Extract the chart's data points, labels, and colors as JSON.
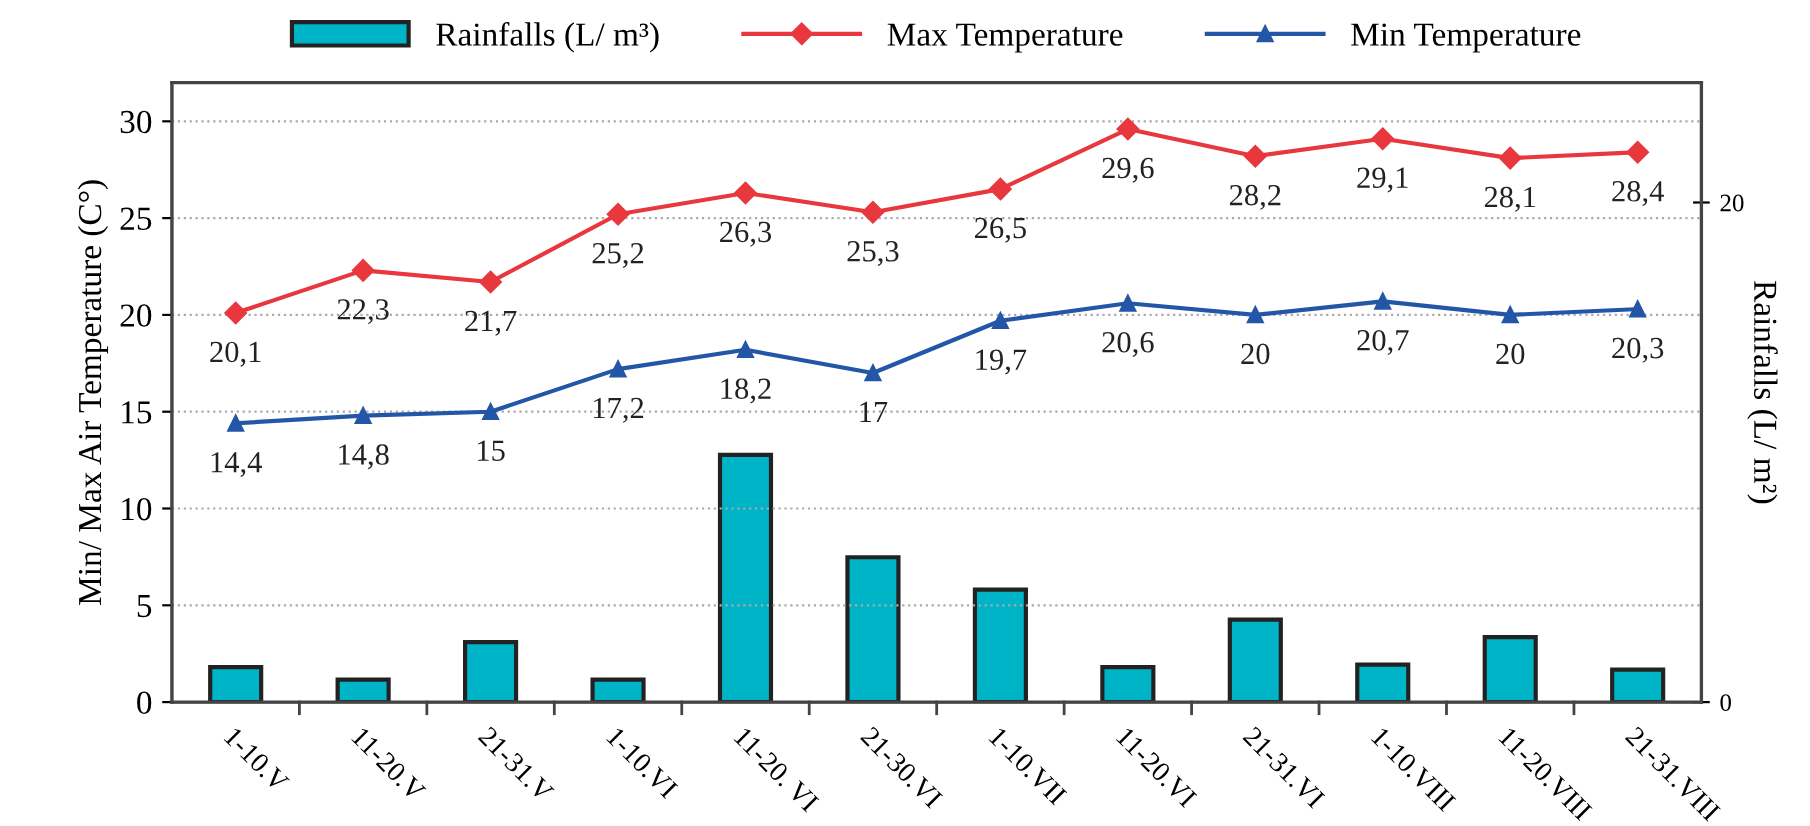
{
  "chart_data": {
    "type": "bar",
    "ylabel": "Min/ Max Air Temperature (C°)",
    "y2label": "Rainfalls (L/ m²)",
    "categories": [
      "1-10.V",
      "11-20.V",
      "21-31.V",
      "1-10.VI",
      "11-20. VI",
      "21-30.VI",
      "1-10.VII",
      "11-20.VI",
      "21-31.VI",
      "1-10.VIII",
      "11-20.VIII",
      "21-31.VIII"
    ],
    "series": [
      {
        "name": "Rainfalls (L/ m³)",
        "axis": "y2",
        "color": "#00b4c8",
        "values": [
          1.4,
          0.9,
          2.4,
          0.9,
          9.9,
          5.8,
          4.5,
          1.4,
          3.3,
          1.5,
          2.6,
          1.3
        ]
      },
      {
        "name": "Max Temperature",
        "type": "line",
        "color": "#e8383d",
        "marker": "diamond",
        "values": [
          20.1,
          22.3,
          21.7,
          25.2,
          26.3,
          25.3,
          26.5,
          29.6,
          28.2,
          29.1,
          28.1,
          28.4
        ],
        "value_labels": [
          "20,1",
          "22,3",
          "21,7",
          "25,2",
          "26,3",
          "25,3",
          "26,5",
          "29,6",
          "28,2",
          "29,1",
          "28,1",
          "28,4"
        ]
      },
      {
        "name": "Min Temperature",
        "type": "line",
        "color": "#2456a8",
        "marker": "triangle",
        "values": [
          14.4,
          14.8,
          15,
          17.2,
          18.2,
          17,
          19.7,
          20.6,
          20,
          20.7,
          20,
          20.3
        ],
        "value_labels": [
          "14,4",
          "14,8",
          "15",
          "17,2",
          "18,2",
          "17",
          "19,7",
          "20,6",
          "20",
          "20,7",
          "20",
          "20,3"
        ]
      }
    ],
    "ylim": [
      0,
      32
    ],
    "yticks": [
      0,
      5,
      10,
      15,
      20,
      25,
      30
    ],
    "y2lim": [
      0,
      24.8
    ],
    "y2ticks": [
      0,
      20
    ],
    "grid": "y",
    "legend": "top",
    "line_style": "solid"
  }
}
